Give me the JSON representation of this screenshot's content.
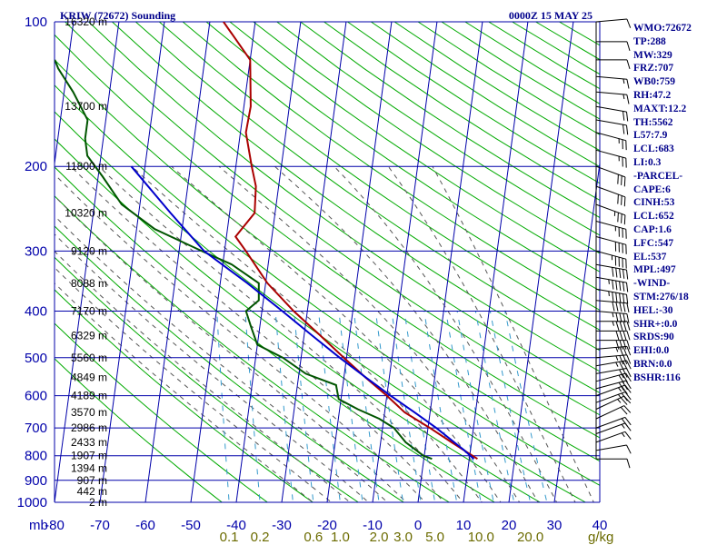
{
  "header": {
    "station": "KRIW (72672) Sounding",
    "time": "0000Z 15 MAY 25"
  },
  "axis_units": {
    "pressure_unit": "mb",
    "mixing_ratio_unit": "g/kg"
  },
  "indices": [
    "WMO:72672",
    "TP:288",
    "MW:329",
    "FRZ:707",
    "WB0:759",
    "RH:47.2",
    "MAXT:12.2",
    "TH:5562",
    "L57:7.9",
    "LCL:683",
    "LI:0.3",
    "-PARCEL-",
    "CAPE:6",
    "CINH:53",
    "LCL:652",
    "CAP:1.6",
    "LFC:547",
    "EL:537",
    "MPL:497",
    "-WIND-",
    "STM:276/18",
    "HEL:-30",
    "SHR+:0.0",
    "SRDS:90",
    "EHI:0.0",
    "BRN:0.0",
    "BSHR:116"
  ],
  "colors": {
    "background": "#ffffff",
    "isobar": "#0000aa",
    "isotherm": "#0000aa",
    "dry_adiabat": "#00aa00",
    "moist_adiabat": "#555555",
    "mixing_ratio": "#3399cc",
    "temperature": "#aa0000",
    "dewpoint": "#005500",
    "parcel": "#0000cc",
    "wind": "#000000"
  },
  "chart_data": {
    "type": "line",
    "subtype": "skew-t log-p",
    "pressure_levels": [
      100,
      200,
      300,
      400,
      500,
      600,
      700,
      800,
      900,
      1000
    ],
    "temperature_ticks": [
      -80,
      -70,
      -60,
      -50,
      -40,
      -30,
      -20,
      -10,
      0,
      10,
      20,
      30,
      40
    ],
    "temperature_tick_labels": [
      "-80",
      "-70",
      "-60",
      "-50",
      "-40",
      "-30",
      "-20",
      "-10",
      "0",
      "10",
      "20",
      "30",
      "40"
    ],
    "mixing_ratio_labels": [
      "0.1",
      "0.2",
      "0.6",
      "1.0",
      "2.0",
      "3.0",
      "5.0",
      "10.0",
      "20.0"
    ],
    "height_labels": [
      {
        "p": 100,
        "label": "16320 m"
      },
      {
        "p": 150,
        "label": "13700 m"
      },
      {
        "p": 200,
        "label": "11800 m"
      },
      {
        "p": 250,
        "label": "10320 m"
      },
      {
        "p": 300,
        "label": "9120 m"
      },
      {
        "p": 350,
        "label": "8088 m"
      },
      {
        "p": 400,
        "label": "7170 m"
      },
      {
        "p": 450,
        "label": "6329 m"
      },
      {
        "p": 500,
        "label": "5560 m"
      },
      {
        "p": 550,
        "label": "4849 m"
      },
      {
        "p": 600,
        "label": "4189 m"
      },
      {
        "p": 650,
        "label": "3570 m"
      },
      {
        "p": 700,
        "label": "2986 m"
      },
      {
        "p": 750,
        "label": "2433 m"
      },
      {
        "p": 800,
        "label": "1907 m"
      },
      {
        "p": 850,
        "label": "1394 m"
      },
      {
        "p": 900,
        "label": "907 m"
      },
      {
        "p": 950,
        "label": "442 m"
      },
      {
        "p": 1000,
        "label": "2 m"
      }
    ],
    "ylim": [
      1000,
      100
    ],
    "xlim": [
      -80,
      40
    ],
    "series": [
      {
        "key": "temperature",
        "values": [
          [
            812,
            11.8
          ],
          [
            750,
            5.6
          ],
          [
            700,
            0.4
          ],
          [
            650,
            -5.6
          ],
          [
            600,
            -10.0
          ],
          [
            550,
            -15.2
          ],
          [
            500,
            -20.6
          ],
          [
            450,
            -26.4
          ],
          [
            400,
            -33.0
          ],
          [
            350,
            -39.6
          ],
          [
            300,
            -45.3
          ],
          [
            280,
            -48.0
          ],
          [
            250,
            -44.5
          ],
          [
            220,
            -45.0
          ],
          [
            200,
            -46.5
          ],
          [
            170,
            -48.8
          ],
          [
            150,
            -48.5
          ],
          [
            120,
            -50.0
          ],
          [
            100,
            -57.0
          ]
        ]
      },
      {
        "key": "dewpoint",
        "values": [
          [
            812,
            1.8
          ],
          [
            800,
            -0.2
          ],
          [
            750,
            -4.5
          ],
          [
            700,
            -7.5
          ],
          [
            670,
            -11.0
          ],
          [
            640,
            -16.0
          ],
          [
            610,
            -20.5
          ],
          [
            570,
            -21.5
          ],
          [
            540,
            -28.5
          ],
          [
            500,
            -34.0
          ],
          [
            470,
            -40.0
          ],
          [
            430,
            -42.0
          ],
          [
            400,
            -43.5
          ],
          [
            380,
            -41.0
          ],
          [
            350,
            -41.5
          ],
          [
            320,
            -48.0
          ],
          [
            300,
            -55.0
          ],
          [
            270,
            -66.0
          ],
          [
            240,
            -74.0
          ],
          [
            210,
            -79.0
          ],
          [
            190,
            -83.0
          ],
          [
            175,
            -84.0
          ],
          [
            160,
            -84.0
          ],
          [
            140,
            -88.0
          ],
          [
            125,
            -92.0
          ],
          [
            120,
            -93.0
          ]
        ]
      },
      {
        "key": "parcel",
        "values": [
          [
            812,
            11.0
          ],
          [
            780,
            8.7
          ],
          [
            700,
            1.8
          ],
          [
            652,
            -3.2
          ],
          [
            600,
            -9.2
          ],
          [
            547,
            -15.5
          ],
          [
            500,
            -21.5
          ],
          [
            450,
            -28.2
          ],
          [
            400,
            -35.5
          ],
          [
            350,
            -44.0
          ],
          [
            300,
            -54.5
          ],
          [
            250,
            -63.0
          ],
          [
            200,
            -73.0
          ]
        ]
      }
    ],
    "wind_profile": [
      {
        "p": 812,
        "dir": 270,
        "spd": 10
      },
      {
        "p": 780,
        "dir": 260,
        "spd": 12
      },
      {
        "p": 750,
        "dir": 250,
        "spd": 15
      },
      {
        "p": 720,
        "dir": 250,
        "spd": 18
      },
      {
        "p": 700,
        "dir": 250,
        "spd": 20
      },
      {
        "p": 670,
        "dir": 245,
        "spd": 22
      },
      {
        "p": 640,
        "dir": 245,
        "spd": 25
      },
      {
        "p": 620,
        "dir": 250,
        "spd": 25
      },
      {
        "p": 600,
        "dir": 250,
        "spd": 28
      },
      {
        "p": 580,
        "dir": 255,
        "spd": 30
      },
      {
        "p": 560,
        "dir": 255,
        "spd": 30
      },
      {
        "p": 540,
        "dir": 260,
        "spd": 32
      },
      {
        "p": 520,
        "dir": 260,
        "spd": 35
      },
      {
        "p": 500,
        "dir": 265,
        "spd": 35
      },
      {
        "p": 480,
        "dir": 265,
        "spd": 38
      },
      {
        "p": 460,
        "dir": 270,
        "spd": 40
      },
      {
        "p": 440,
        "dir": 270,
        "spd": 42
      },
      {
        "p": 420,
        "dir": 270,
        "spd": 45
      },
      {
        "p": 400,
        "dir": 275,
        "spd": 48
      },
      {
        "p": 380,
        "dir": 275,
        "spd": 50
      },
      {
        "p": 360,
        "dir": 280,
        "spd": 55
      },
      {
        "p": 340,
        "dir": 280,
        "spd": 55
      },
      {
        "p": 320,
        "dir": 280,
        "spd": 50
      },
      {
        "p": 300,
        "dir": 285,
        "spd": 45
      },
      {
        "p": 280,
        "dir": 285,
        "spd": 40
      },
      {
        "p": 260,
        "dir": 285,
        "spd": 35
      },
      {
        "p": 240,
        "dir": 290,
        "spd": 35
      },
      {
        "p": 220,
        "dir": 290,
        "spd": 30
      },
      {
        "p": 200,
        "dir": 290,
        "spd": 30
      },
      {
        "p": 185,
        "dir": 285,
        "spd": 25
      },
      {
        "p": 170,
        "dir": 285,
        "spd": 25
      },
      {
        "p": 160,
        "dir": 280,
        "spd": 20
      },
      {
        "p": 150,
        "dir": 280,
        "spd": 20
      },
      {
        "p": 140,
        "dir": 275,
        "spd": 15
      },
      {
        "p": 130,
        "dir": 275,
        "spd": 15
      },
      {
        "p": 120,
        "dir": 270,
        "spd": 10
      },
      {
        "p": 110,
        "dir": 270,
        "spd": 10
      },
      {
        "p": 100,
        "dir": 265,
        "spd": 10
      }
    ],
    "grid": true
  }
}
